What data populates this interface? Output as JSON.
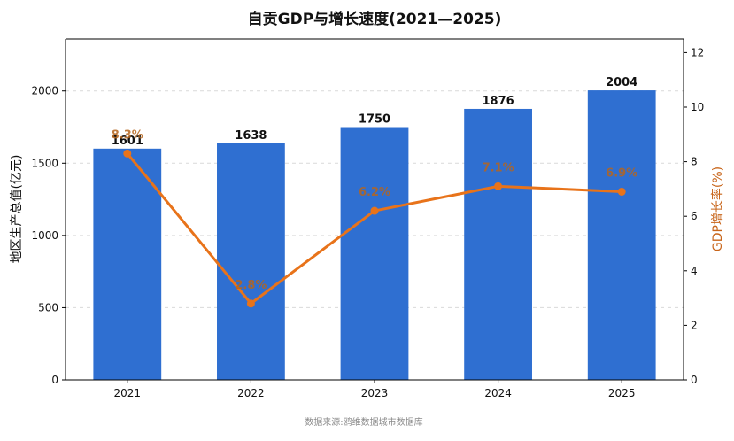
{
  "chart_data": {
    "type": "bar+line",
    "title": "自贡GDP与增长速度(2021—2025)",
    "categories": [
      "2021",
      "2022",
      "2023",
      "2024",
      "2025"
    ],
    "series": [
      {
        "name": "地区生产总值(亿元)",
        "type": "bar",
        "axis": "left",
        "values": [
          1601,
          1638,
          1750,
          1876,
          2004
        ],
        "labels": [
          "1601",
          "1638",
          "1750",
          "1876",
          "2004"
        ],
        "color": "#2f6fd1"
      },
      {
        "name": "GDP增长率(%)",
        "type": "line",
        "axis": "right",
        "values": [
          8.3,
          2.8,
          6.2,
          7.1,
          6.9
        ],
        "labels": [
          "8.3%",
          "2.8%",
          "6.2%",
          "7.1%",
          "6.9%"
        ],
        "color": "#e8731a"
      }
    ],
    "ylabel": "地区生产总值(亿元)",
    "y2label": "GDP增长率(%)",
    "ylim": [
      0,
      2360
    ],
    "y2lim": [
      0,
      12.5
    ],
    "yticks": [
      0,
      500,
      1000,
      1500,
      2000
    ],
    "y2ticks": [
      0,
      2,
      4,
      6,
      8,
      10,
      12
    ],
    "grid": true,
    "source": "数据来源:鸥维数据城市数据库",
    "colors": {
      "bar": "#2f6fd1",
      "line": "#e8731a",
      "y2label": "#c8651a",
      "line_label": "#b5651d",
      "grid": "#d9d9d9",
      "source": "#8a8a8a"
    }
  }
}
